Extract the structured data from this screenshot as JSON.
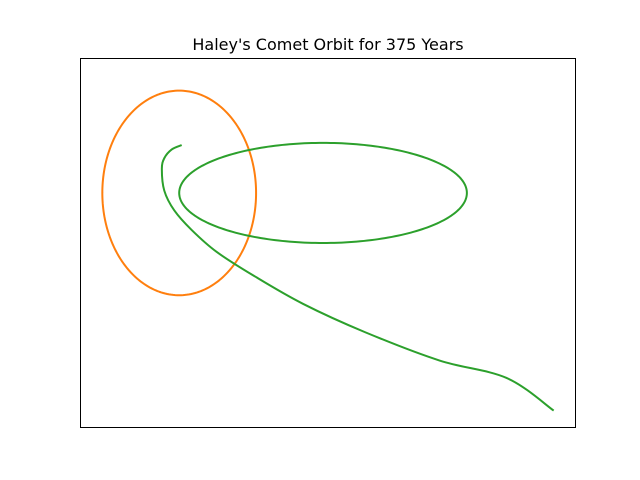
{
  "chart_data": {
    "type": "line",
    "title": "Haley's Comet Orbit for 375 Years",
    "xlabel": "",
    "ylabel": "",
    "xlim": [
      -1.0,
      1.0
    ],
    "ylim": [
      -0.85,
      0.85
    ],
    "axes_visible_ticks": false,
    "grid": false,
    "series": [
      {
        "color": "#ff7f0e",
        "kind": "ellipse",
        "center": [
          -0.6,
          0.23
        ],
        "semi_axes": [
          0.31,
          0.47
        ]
      },
      {
        "color": "#2ca02c",
        "kind": "ellipse",
        "center": [
          -0.02,
          0.23
        ],
        "semi_axes": [
          0.58,
          0.23
        ]
      },
      {
        "color": "#2ca02c",
        "kind": "escape_path",
        "points": [
          [
            -0.59,
            0.45
          ],
          [
            -0.63,
            0.43
          ],
          [
            -0.66,
            0.39
          ],
          [
            -0.67,
            0.34
          ],
          [
            -0.66,
            0.24
          ],
          [
            -0.62,
            0.15
          ],
          [
            -0.55,
            0.06
          ],
          [
            -0.45,
            -0.04
          ],
          [
            -0.3,
            -0.15
          ],
          [
            -0.1,
            -0.28
          ],
          [
            0.15,
            -0.41
          ],
          [
            0.45,
            -0.54
          ],
          [
            0.72,
            -0.62
          ],
          [
            0.91,
            -0.77
          ]
        ]
      }
    ]
  }
}
